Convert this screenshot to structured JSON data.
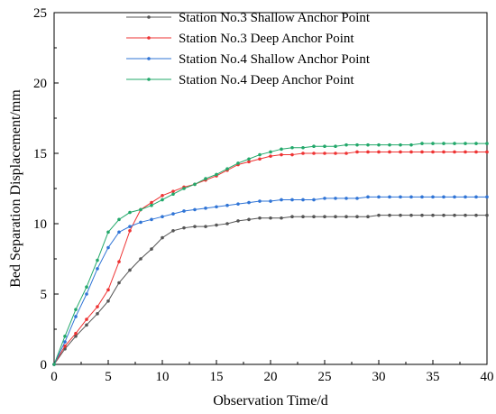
{
  "chart_data": {
    "type": "line",
    "title": "",
    "xlabel": "Observation Time/d",
    "ylabel": "Bed Separation Displacement/mm",
    "xlim": [
      0,
      40
    ],
    "ylim": [
      0,
      25
    ],
    "x_ticks": [
      0,
      5,
      10,
      15,
      20,
      25,
      30,
      35,
      40
    ],
    "y_ticks": [
      0,
      5,
      10,
      15,
      20,
      25
    ],
    "grid": false,
    "legend_position": "top-right",
    "x": [
      0,
      1,
      2,
      3,
      4,
      5,
      6,
      7,
      8,
      9,
      10,
      11,
      12,
      13,
      14,
      15,
      16,
      17,
      18,
      19,
      20,
      21,
      22,
      23,
      24,
      25,
      26,
      27,
      28,
      29,
      30,
      31,
      32,
      33,
      34,
      35,
      36,
      37,
      38,
      39,
      40
    ],
    "series": [
      {
        "name": "Station No.3 Shallow Anchor Point",
        "color": "#555555",
        "values": [
          0,
          1.1,
          2.0,
          2.8,
          3.6,
          4.5,
          5.8,
          6.7,
          7.5,
          8.2,
          9.0,
          9.5,
          9.7,
          9.8,
          9.8,
          9.9,
          10.0,
          10.2,
          10.3,
          10.4,
          10.4,
          10.4,
          10.5,
          10.5,
          10.5,
          10.5,
          10.5,
          10.5,
          10.5,
          10.5,
          10.6,
          10.6,
          10.6,
          10.6,
          10.6,
          10.6,
          10.6,
          10.6,
          10.6,
          10.6,
          10.6
        ]
      },
      {
        "name": "Station No.3 Deep Anchor Point",
        "color": "#ee3333",
        "values": [
          0,
          1.3,
          2.2,
          3.2,
          4.1,
          5.3,
          7.3,
          9.5,
          11.0,
          11.5,
          12.0,
          12.3,
          12.6,
          12.8,
          13.1,
          13.4,
          13.8,
          14.2,
          14.4,
          14.6,
          14.8,
          14.9,
          14.9,
          15.0,
          15.0,
          15.0,
          15.0,
          15.0,
          15.1,
          15.1,
          15.1,
          15.1,
          15.1,
          15.1,
          15.1,
          15.1,
          15.1,
          15.1,
          15.1,
          15.1,
          15.1
        ]
      },
      {
        "name": "Station No.4 Shallow Anchor Point",
        "color": "#2f74d6",
        "values": [
          0,
          1.6,
          3.4,
          5.0,
          6.8,
          8.3,
          9.4,
          9.8,
          10.1,
          10.3,
          10.5,
          10.7,
          10.9,
          11.0,
          11.1,
          11.2,
          11.3,
          11.4,
          11.5,
          11.6,
          11.6,
          11.7,
          11.7,
          11.7,
          11.7,
          11.8,
          11.8,
          11.8,
          11.8,
          11.9,
          11.9,
          11.9,
          11.9,
          11.9,
          11.9,
          11.9,
          11.9,
          11.9,
          11.9,
          11.9,
          11.9
        ]
      },
      {
        "name": "Station No.4 Deep Anchor Point",
        "color": "#22a86a",
        "values": [
          0,
          2.0,
          3.9,
          5.5,
          7.4,
          9.4,
          10.3,
          10.8,
          11.0,
          11.3,
          11.7,
          12.1,
          12.5,
          12.8,
          13.2,
          13.5,
          13.9,
          14.3,
          14.6,
          14.9,
          15.1,
          15.3,
          15.4,
          15.4,
          15.5,
          15.5,
          15.5,
          15.6,
          15.6,
          15.6,
          15.6,
          15.6,
          15.6,
          15.6,
          15.7,
          15.7,
          15.7,
          15.7,
          15.7,
          15.7,
          15.7
        ]
      }
    ]
  }
}
